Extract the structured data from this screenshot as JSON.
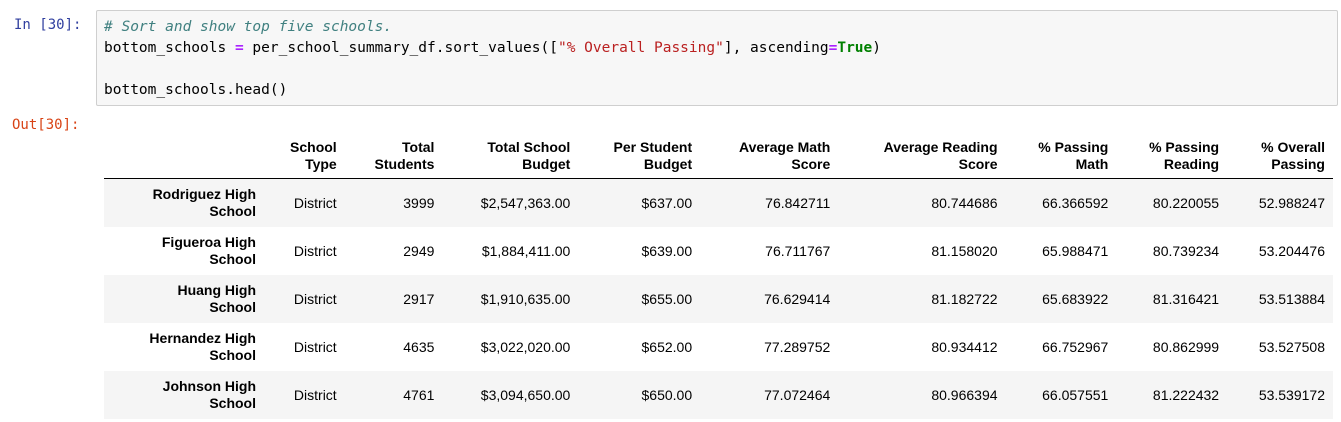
{
  "cell": {
    "in_prompt": "In [30]:",
    "out_prompt": "Out[30]:",
    "code": {
      "line1_comment": "# Sort and show top five schools.",
      "line2_a": "bottom_schools ",
      "line2_eq": "=",
      "line2_b": " per_school_summary_df.sort_values([",
      "line2_str": "\"% Overall Passing\"",
      "line2_c": "], ascending",
      "line2_eq2": "=",
      "line2_kw": "True",
      "line2_d": ")",
      "line4": "bottom_schools.head()"
    }
  },
  "table": {
    "columns": [
      [
        "School",
        "Type"
      ],
      [
        "Total",
        "Students"
      ],
      [
        "Total School",
        "Budget"
      ],
      [
        "Per Student",
        "Budget"
      ],
      [
        "Average Math",
        "Score"
      ],
      [
        "Average Reading",
        "Score"
      ],
      [
        "% Passing",
        "Math"
      ],
      [
        "% Passing",
        "Reading"
      ],
      [
        "% Overall",
        "Passing"
      ]
    ],
    "rows": [
      {
        "index": [
          "Rodriguez High",
          "School"
        ],
        "cells": [
          "District",
          "3999",
          "$2,547,363.00",
          "$637.00",
          "76.842711",
          "80.744686",
          "66.366592",
          "80.220055",
          "52.988247"
        ]
      },
      {
        "index": [
          "Figueroa High",
          "School"
        ],
        "cells": [
          "District",
          "2949",
          "$1,884,411.00",
          "$639.00",
          "76.711767",
          "81.158020",
          "65.988471",
          "80.739234",
          "53.204476"
        ]
      },
      {
        "index": [
          "Huang High",
          "School"
        ],
        "cells": [
          "District",
          "2917",
          "$1,910,635.00",
          "$655.00",
          "76.629414",
          "81.182722",
          "65.683922",
          "81.316421",
          "53.513884"
        ]
      },
      {
        "index": [
          "Hernandez High",
          "School"
        ],
        "cells": [
          "District",
          "4635",
          "$3,022,020.00",
          "$652.00",
          "77.289752",
          "80.934412",
          "66.752967",
          "80.862999",
          "53.527508"
        ]
      },
      {
        "index": [
          "Johnson High",
          "School"
        ],
        "cells": [
          "District",
          "4761",
          "$3,094,650.00",
          "$650.00",
          "77.072464",
          "80.966394",
          "66.057551",
          "81.222432",
          "53.539172"
        ]
      }
    ]
  }
}
